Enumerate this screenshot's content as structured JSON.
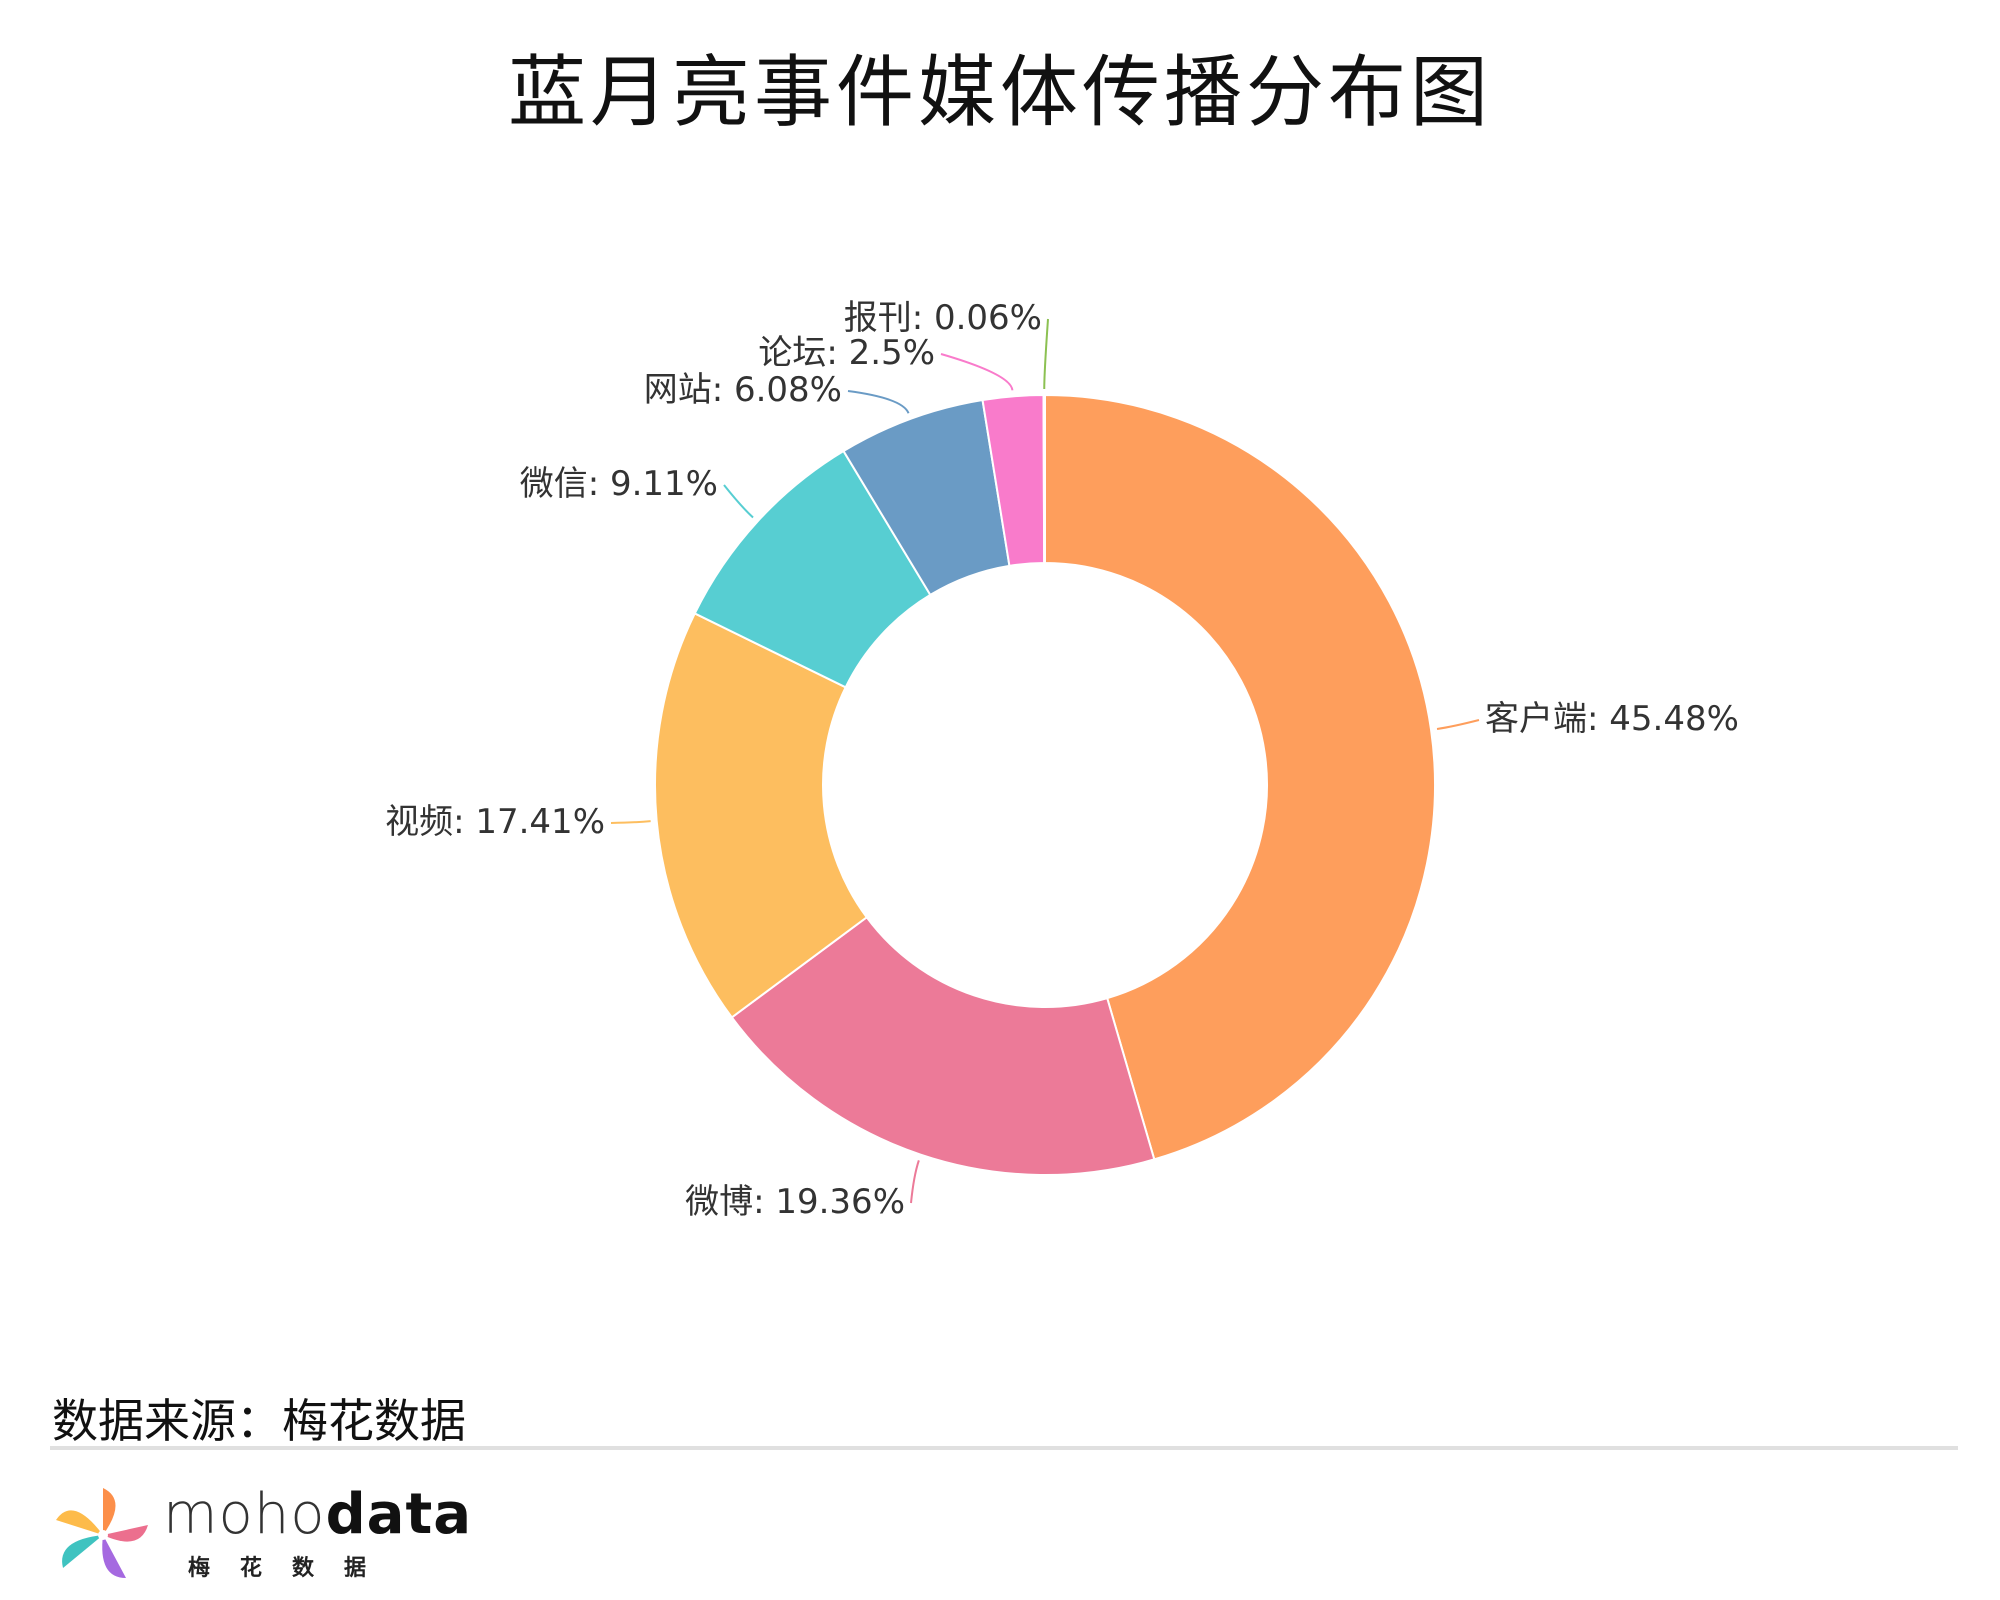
{
  "title": "蓝月亮事件媒体传播分布图",
  "source": "数据来源：梅花数据",
  "logo": {
    "brand_light": "moho",
    "brand_bold": "data",
    "brand_sub": "梅花数据"
  },
  "chart_data": {
    "type": "pie",
    "variant": "donut",
    "title": "蓝月亮事件媒体传播分布图",
    "slices": [
      {
        "name": "客户端",
        "value": 45.48,
        "label": "客户端: 45.48%",
        "color": "#fe9e5c"
      },
      {
        "name": "微博",
        "value": 19.36,
        "label": "微博: 19.36%",
        "color": "#ec7a98"
      },
      {
        "name": "视频",
        "value": 17.41,
        "label": "视频: 17.41%",
        "color": "#fdbe5f"
      },
      {
        "name": "微信",
        "value": 9.11,
        "label": "微信: 9.11%",
        "color": "#57ced2"
      },
      {
        "name": "网站",
        "value": 6.08,
        "label": "网站: 6.08%",
        "color": "#6a9bc5"
      },
      {
        "name": "论坛",
        "value": 2.5,
        "label": "论坛: 2.5%",
        "color": "#f97bcb"
      },
      {
        "name": "报刊",
        "value": 0.06,
        "label": "报刊: 0.06%",
        "color": "#8cc152"
      }
    ]
  }
}
